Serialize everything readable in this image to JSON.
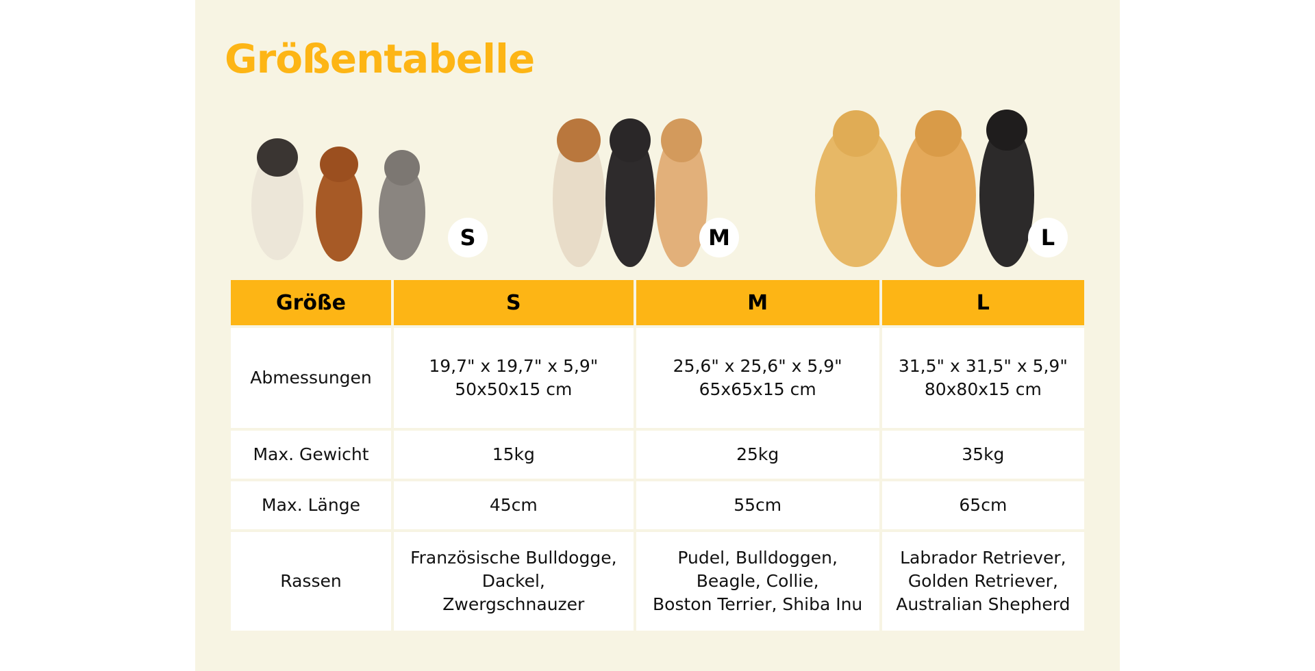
{
  "title": "Größentabelle",
  "badges": [
    "S",
    "M",
    "L"
  ],
  "table": {
    "headers": [
      "Größe",
      "S",
      "M",
      "L"
    ],
    "rows": [
      {
        "label": "Abmessungen",
        "values": [
          [
            "19,7\" x 19,7\" x 5,9\"",
            "50x50x15 cm"
          ],
          [
            "25,6\" x 25,6\" x 5,9\"",
            "65x65x15 cm"
          ],
          [
            "31,5\" x 31,5\" x 5,9\"",
            "80x80x15 cm"
          ]
        ]
      },
      {
        "label": "Max. Gewicht",
        "values": [
          [
            "15kg"
          ],
          [
            "25kg"
          ],
          [
            "35kg"
          ]
        ]
      },
      {
        "label": "Max. Länge",
        "values": [
          [
            "45cm"
          ],
          [
            "55cm"
          ],
          [
            "65cm"
          ]
        ]
      },
      {
        "label": "Rassen",
        "values": [
          [
            "Französische Bulldogge,",
            "Dackel,",
            "Zwergschnauzer"
          ],
          [
            "Pudel, Bulldoggen,",
            "Beagle, Collie,",
            "Boston Terrier, Shiba Inu"
          ],
          [
            "Labrador Retriever,",
            "Golden Retriever,",
            "Australian Shepherd"
          ]
        ]
      }
    ]
  },
  "colors": {
    "accent": "#fdb515",
    "background": "#f7f4e3"
  }
}
